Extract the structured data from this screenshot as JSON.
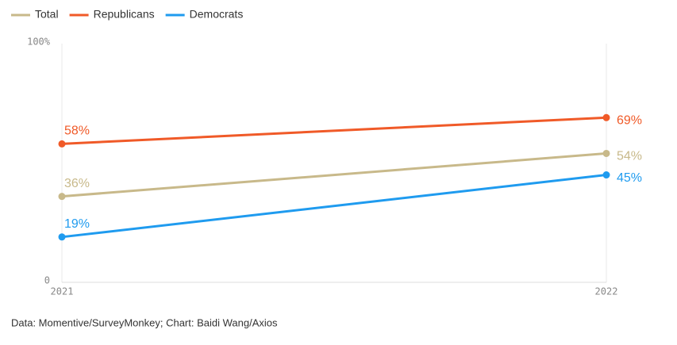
{
  "chart_data": {
    "type": "line",
    "categories": [
      "2021",
      "2022"
    ],
    "series": [
      {
        "name": "Total",
        "color": "#c8b98a",
        "values": [
          36,
          54
        ],
        "value_labels": [
          "36%",
          "54%"
        ]
      },
      {
        "name": "Republicans",
        "color": "#f05a28",
        "values": [
          58,
          69
        ],
        "value_labels": [
          "58%",
          "69%"
        ]
      },
      {
        "name": "Democrats",
        "color": "#1f9bef",
        "values": [
          19,
          45
        ],
        "value_labels": [
          "19%",
          "45%"
        ]
      }
    ],
    "ylim": [
      0,
      100
    ],
    "yticks": [
      0,
      {
        "value": 100,
        "label": "100%"
      }
    ],
    "source": "Data: Momentive/SurveyMonkey; Chart: Baidi Wang/Axios"
  }
}
